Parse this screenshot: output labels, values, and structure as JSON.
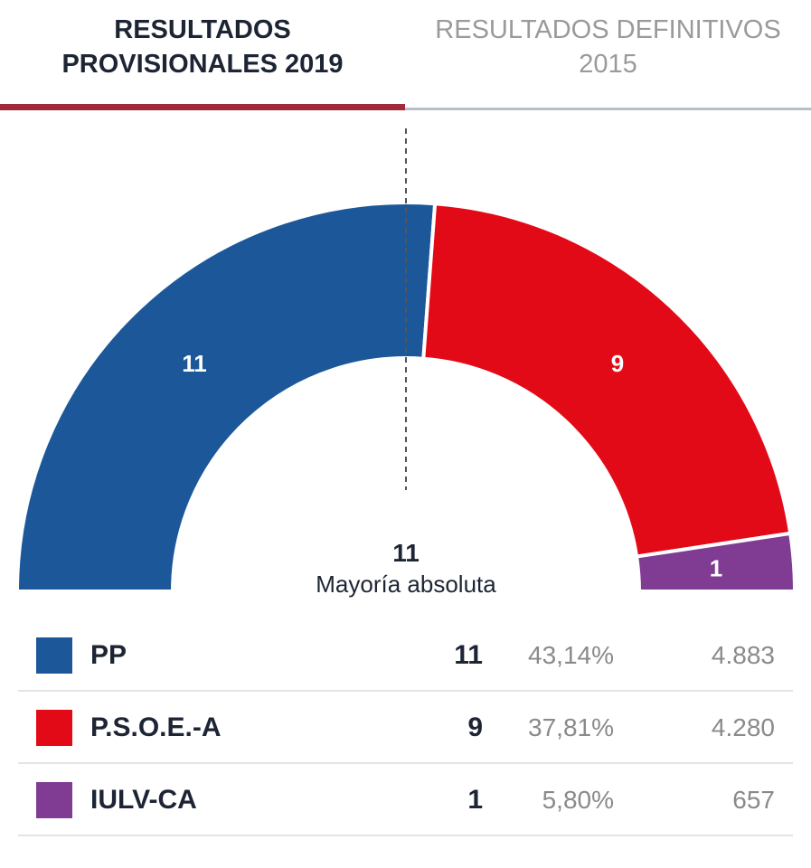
{
  "tabs": {
    "active": {
      "line1": "RESULTADOS",
      "line2": "PROVISIONALES 2019"
    },
    "inactive": {
      "line1": "RESULTADOS DEFINITIVOS",
      "line2": "2015"
    }
  },
  "chart_data": {
    "type": "pie",
    "variant": "semicircle",
    "total_seats": 21,
    "majority": {
      "value": "11",
      "label": "Mayoría absoluta"
    },
    "series": [
      {
        "name": "PP",
        "seats": 11,
        "seat_label": "11",
        "percent": "43,14%",
        "votes": "4.883",
        "color": "#1c5899"
      },
      {
        "name": "P.S.O.E.-A",
        "seats": 9,
        "seat_label": "9",
        "percent": "37,81%",
        "votes": "4.280",
        "color": "#e30a18"
      },
      {
        "name": "IULV-CA",
        "seats": 1,
        "seat_label": "1",
        "percent": "5,80%",
        "votes": "657",
        "color": "#803b92"
      }
    ]
  }
}
